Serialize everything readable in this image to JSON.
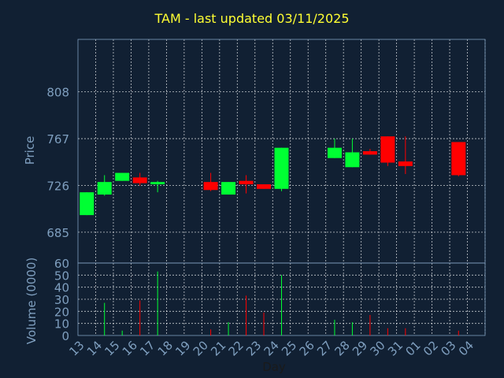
{
  "title": "TAM - last updated 03/11/2025",
  "colors": {
    "background": "#112033",
    "title": "#ffff33",
    "axis_text": "#7f9fbf",
    "up": "#00ff33",
    "down": "#ff0000",
    "grid": "#ffffff"
  },
  "chart_data": [
    {
      "type": "candlestick",
      "title": "TAM - last updated 03/11/2025",
      "ylabel": "Price",
      "ylim": [
        658,
        854
      ],
      "yticks": [
        685,
        726,
        767,
        808
      ],
      "grid": true,
      "categories": [
        "13",
        "14",
        "15",
        "16",
        "17",
        "18",
        "19",
        "20",
        "21",
        "22",
        "23",
        "24",
        "25",
        "26",
        "27",
        "28",
        "29",
        "30",
        "31",
        "01",
        "02",
        "03",
        "04"
      ],
      "candles": [
        {
          "x": "13",
          "open": 700,
          "close": 720,
          "high": 720,
          "low": 700
        },
        {
          "x": "14",
          "open": 718,
          "close": 729,
          "high": 735,
          "low": 717
        },
        {
          "x": "15",
          "open": 730,
          "close": 737,
          "high": 737,
          "low": 730
        },
        {
          "x": "16",
          "open": 733,
          "close": 728,
          "high": 737,
          "low": 726
        },
        {
          "x": "17",
          "open": 727,
          "close": 729,
          "high": 730,
          "low": 720
        },
        {
          "x": "20",
          "open": 729,
          "close": 722,
          "high": 737,
          "low": 721
        },
        {
          "x": "21",
          "open": 718,
          "close": 729,
          "high": 729,
          "low": 718
        },
        {
          "x": "22",
          "open": 730,
          "close": 727,
          "high": 735,
          "low": 719
        },
        {
          "x": "23",
          "open": 727,
          "close": 723,
          "high": 727,
          "low": 723
        },
        {
          "x": "24",
          "open": 723,
          "close": 759,
          "high": 759,
          "low": 721
        },
        {
          "x": "27",
          "open": 750,
          "close": 759,
          "high": 767,
          "low": 750
        },
        {
          "x": "28",
          "open": 742,
          "close": 755,
          "high": 767,
          "low": 742
        },
        {
          "x": "29",
          "open": 756,
          "close": 753,
          "high": 758,
          "low": 753
        },
        {
          "x": "30",
          "open": 769,
          "close": 746,
          "high": 769,
          "low": 743
        },
        {
          "x": "31",
          "open": 747,
          "close": 743,
          "high": 769,
          "low": 736
        },
        {
          "x": "03",
          "open": 764,
          "close": 735,
          "high": 764,
          "low": 734
        }
      ]
    },
    {
      "type": "bar",
      "ylabel": "Volume (0000)",
      "xlabel": "Day",
      "ylim": [
        0,
        60
      ],
      "yticks": [
        0,
        10,
        20,
        30,
        40,
        50,
        60
      ],
      "grid": true,
      "categories": [
        "13",
        "14",
        "15",
        "16",
        "17",
        "18",
        "19",
        "20",
        "21",
        "22",
        "23",
        "24",
        "25",
        "26",
        "27",
        "28",
        "29",
        "30",
        "31",
        "01",
        "02",
        "03",
        "04"
      ],
      "bars": [
        {
          "x": "13",
          "value": 0,
          "direction": "up"
        },
        {
          "x": "14",
          "value": 27,
          "direction": "up"
        },
        {
          "x": "15",
          "value": 4,
          "direction": "up"
        },
        {
          "x": "16",
          "value": 29,
          "direction": "down"
        },
        {
          "x": "17",
          "value": 53,
          "direction": "up"
        },
        {
          "x": "20",
          "value": 5,
          "direction": "down"
        },
        {
          "x": "21",
          "value": 11,
          "direction": "up"
        },
        {
          "x": "22",
          "value": 33,
          "direction": "down"
        },
        {
          "x": "23",
          "value": 19,
          "direction": "down"
        },
        {
          "x": "24",
          "value": 50,
          "direction": "up"
        },
        {
          "x": "27",
          "value": 13,
          "direction": "up"
        },
        {
          "x": "28",
          "value": 11,
          "direction": "up"
        },
        {
          "x": "29",
          "value": 17,
          "direction": "down"
        },
        {
          "x": "30",
          "value": 6,
          "direction": "down"
        },
        {
          "x": "31",
          "value": 6,
          "direction": "down"
        },
        {
          "x": "03",
          "value": 4,
          "direction": "down"
        }
      ]
    }
  ]
}
